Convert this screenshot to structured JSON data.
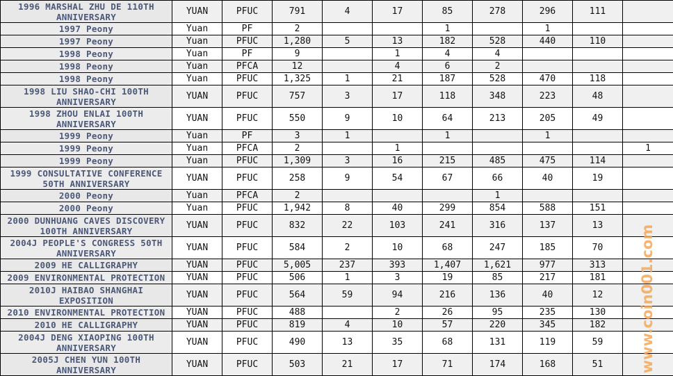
{
  "colors": {
    "name_text": "#4c5878",
    "watermark": "#f5a855",
    "zebra": "#f0f0f0"
  },
  "watermark": "www.coin001.com",
  "rows": [
    {
      "name": "1996 MARSHAL ZHU DE 110TH ANNIVERSARY",
      "unit": "YUAN",
      "grade": "PFUC",
      "total": "791",
      "c": [
        "4",
        "17",
        "85",
        "278",
        "296",
        "111",
        ""
      ]
    },
    {
      "name": "1997 Peony",
      "unit": "Yuan",
      "grade": "PF",
      "total": "2",
      "c": [
        "",
        "",
        "1",
        "",
        "1",
        "",
        ""
      ]
    },
    {
      "name": "1997 Peony",
      "unit": "Yuan",
      "grade": "PFUC",
      "total": "1,280",
      "c": [
        "5",
        "13",
        "182",
        "528",
        "440",
        "110",
        ""
      ]
    },
    {
      "name": "1998 Peony",
      "unit": "Yuan",
      "grade": "PF",
      "total": "9",
      "c": [
        "",
        "1",
        "4",
        "4",
        "",
        "",
        ""
      ]
    },
    {
      "name": "1998 Peony",
      "unit": "Yuan",
      "grade": "PFCA",
      "total": "12",
      "c": [
        "",
        "4",
        "6",
        "2",
        "",
        "",
        ""
      ]
    },
    {
      "name": "1998 Peony",
      "unit": "Yuan",
      "grade": "PFUC",
      "total": "1,325",
      "c": [
        "1",
        "21",
        "187",
        "528",
        "470",
        "118",
        ""
      ]
    },
    {
      "name": "1998 LIU SHAO-CHI 100TH ANNIVERSARY",
      "unit": "YUAN",
      "grade": "PFUC",
      "total": "757",
      "c": [
        "3",
        "17",
        "118",
        "348",
        "223",
        "48",
        ""
      ]
    },
    {
      "name": "1998 ZHOU ENLAI 100TH ANNIVERSARY",
      "unit": "YUAN",
      "grade": "PFUC",
      "total": "550",
      "c": [
        "9",
        "10",
        "64",
        "213",
        "205",
        "49",
        ""
      ]
    },
    {
      "name": "1999 Peony",
      "unit": "Yuan",
      "grade": "PF",
      "total": "3",
      "c": [
        "1",
        "",
        "1",
        "",
        "1",
        "",
        ""
      ]
    },
    {
      "name": "1999 Peony",
      "unit": "Yuan",
      "grade": "PFCA",
      "total": "2",
      "c": [
        "",
        "1",
        "",
        "",
        "",
        "",
        "1"
      ]
    },
    {
      "name": "1999 Peony",
      "unit": "Yuan",
      "grade": "PFUC",
      "total": "1,309",
      "c": [
        "3",
        "16",
        "215",
        "485",
        "475",
        "114",
        ""
      ]
    },
    {
      "name": "1999 CONSULTATIVE CONFERENCE 50TH ANNIVERSARY",
      "unit": "YUAN",
      "grade": "PFUC",
      "total": "258",
      "c": [
        "9",
        "54",
        "67",
        "66",
        "40",
        "19",
        ""
      ]
    },
    {
      "name": "2000 Peony",
      "unit": "Yuan",
      "grade": "PFCA",
      "total": "2",
      "c": [
        "",
        "",
        "",
        "1",
        "",
        "",
        ""
      ]
    },
    {
      "name": "2000 Peony",
      "unit": "Yuan",
      "grade": "PFUC",
      "total": "1,942",
      "c": [
        "8",
        "40",
        "299",
        "854",
        "588",
        "151",
        ""
      ]
    },
    {
      "name": "2000 DUNHUANG CAVES DISCOVERY 100TH ANNIVERSARY",
      "unit": "YUAN",
      "grade": "PFUC",
      "total": "832",
      "c": [
        "22",
        "103",
        "241",
        "316",
        "137",
        "13",
        ""
      ]
    },
    {
      "name": "2004J PEOPLE'S CONGRESS 50TH ANNIVERSARY",
      "unit": "YUAN",
      "grade": "PFUC",
      "total": "584",
      "c": [
        "2",
        "10",
        "68",
        "247",
        "185",
        "70",
        ""
      ]
    },
    {
      "name": "2009 HE CALLIGRAPHY",
      "unit": "YUAN",
      "grade": "PFUC",
      "total": "5,005",
      "c": [
        "237",
        "393",
        "1,407",
        "1,621",
        "977",
        "313",
        ""
      ]
    },
    {
      "name": "2009 ENVIRONMENTAL PROTECTION",
      "unit": "YUAN",
      "grade": "PFUC",
      "total": "506",
      "c": [
        "1",
        "3",
        "19",
        "85",
        "217",
        "181",
        ""
      ]
    },
    {
      "name": "2010J HAIBAO SHANGHAI EXPOSITION",
      "unit": "YUAN",
      "grade": "PFUC",
      "total": "564",
      "c": [
        "59",
        "94",
        "216",
        "136",
        "40",
        "12",
        ""
      ]
    },
    {
      "name": "2010 ENVIRONMENTAL PROTECTION",
      "unit": "YUAN",
      "grade": "PFUC",
      "total": "488",
      "c": [
        "",
        "2",
        "26",
        "95",
        "235",
        "130",
        ""
      ]
    },
    {
      "name": "2010 HE CALLIGRAPHY",
      "unit": "YUAN",
      "grade": "PFUC",
      "total": "819",
      "c": [
        "4",
        "10",
        "57",
        "220",
        "345",
        "182",
        ""
      ]
    },
    {
      "name": "2004J DENG XIAOPING 100TH ANNIVERSARY",
      "unit": "YUAN",
      "grade": "PFUC",
      "total": "490",
      "c": [
        "13",
        "35",
        "68",
        "131",
        "119",
        "59",
        ""
      ]
    },
    {
      "name": "2005J CHEN YUN 100TH ANNIVERSARY",
      "unit": "YUAN",
      "grade": "PFUC",
      "total": "503",
      "c": [
        "21",
        "17",
        "71",
        "174",
        "168",
        "51",
        ""
      ]
    }
  ]
}
